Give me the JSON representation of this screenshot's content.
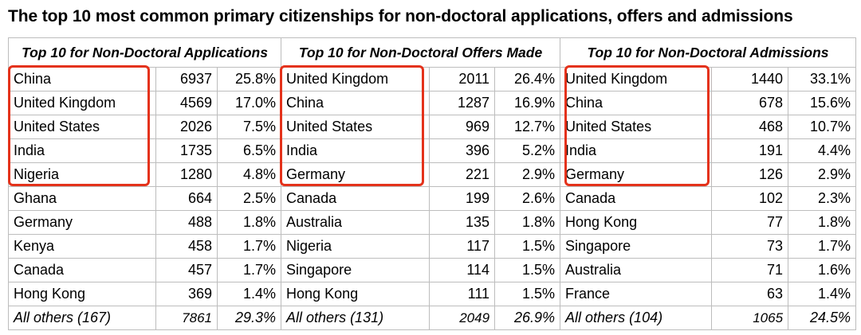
{
  "title": "The top 10 most common primary citizenships for non-doctoral applications, offers and admissions",
  "sections": [
    {
      "heading": "Top 10 for Non-Doctoral Applications",
      "rows": [
        {
          "name": "China",
          "count": "6937",
          "pct": "25.8%"
        },
        {
          "name": "United Kingdom",
          "count": "4569",
          "pct": "17.0%"
        },
        {
          "name": "United States",
          "count": "2026",
          "pct": "7.5%"
        },
        {
          "name": "India",
          "count": "1735",
          "pct": "6.5%"
        },
        {
          "name": "Nigeria",
          "count": "1280",
          "pct": "4.8%"
        },
        {
          "name": "Ghana",
          "count": "664",
          "pct": "2.5%"
        },
        {
          "name": "Germany",
          "count": "488",
          "pct": "1.8%"
        },
        {
          "name": "Kenya",
          "count": "458",
          "pct": "1.7%"
        },
        {
          "name": "Canada",
          "count": "457",
          "pct": "1.7%"
        },
        {
          "name": "Hong Kong",
          "count": "369",
          "pct": "1.4%"
        },
        {
          "name": "All others (167)",
          "count": "7861",
          "pct": "29.3%"
        }
      ]
    },
    {
      "heading": "Top 10 for Non-Doctoral Offers Made",
      "rows": [
        {
          "name": "United Kingdom",
          "count": "2011",
          "pct": "26.4%"
        },
        {
          "name": "China",
          "count": "1287",
          "pct": "16.9%"
        },
        {
          "name": "United States",
          "count": "969",
          "pct": "12.7%"
        },
        {
          "name": "India",
          "count": "396",
          "pct": "5.2%"
        },
        {
          "name": "Germany",
          "count": "221",
          "pct": "2.9%"
        },
        {
          "name": "Canada",
          "count": "199",
          "pct": "2.6%"
        },
        {
          "name": "Australia",
          "count": "135",
          "pct": "1.8%"
        },
        {
          "name": "Nigeria",
          "count": "117",
          "pct": "1.5%"
        },
        {
          "name": "Singapore",
          "count": "114",
          "pct": "1.5%"
        },
        {
          "name": "Hong Kong",
          "count": "111",
          "pct": "1.5%"
        },
        {
          "name": "All others (131)",
          "count": "2049",
          "pct": "26.9%"
        }
      ]
    },
    {
      "heading": "Top 10 for Non-Doctoral Admissions",
      "rows": [
        {
          "name": "United Kingdom",
          "count": "1440",
          "pct": "33.1%"
        },
        {
          "name": "China",
          "count": "678",
          "pct": "15.6%"
        },
        {
          "name": "United States",
          "count": "468",
          "pct": "10.7%"
        },
        {
          "name": "India",
          "count": "191",
          "pct": "4.4%"
        },
        {
          "name": "Germany",
          "count": "126",
          "pct": "2.9%"
        },
        {
          "name": "Canada",
          "count": "102",
          "pct": "2.3%"
        },
        {
          "name": "Hong Kong",
          "count": "77",
          "pct": "1.8%"
        },
        {
          "name": "Singapore",
          "count": "73",
          "pct": "1.7%"
        },
        {
          "name": "Australia",
          "count": "71",
          "pct": "1.6%"
        },
        {
          "name": "France",
          "count": "63",
          "pct": "1.4%"
        },
        {
          "name": "All others (104)",
          "count": "1065",
          "pct": "24.5%"
        }
      ]
    }
  ],
  "highlight_color": "#e4321b"
}
